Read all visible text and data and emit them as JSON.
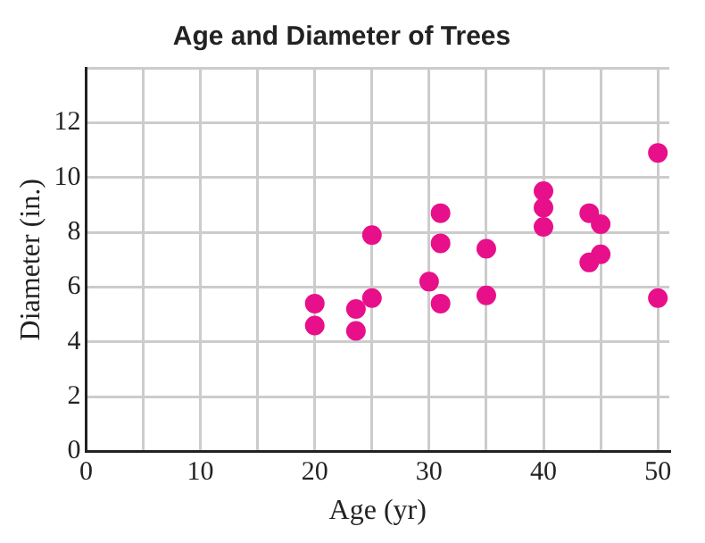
{
  "chart_data": {
    "type": "scatter",
    "title": "Age and Diameter of Trees",
    "xlabel": "Age (yr)",
    "ylabel": "Diameter (in.)",
    "x": [
      20,
      20,
      23.6,
      23.6,
      25,
      25,
      30,
      31,
      31,
      31,
      35,
      35,
      40,
      40,
      40,
      44,
      45,
      44,
      45,
      50,
      50
    ],
    "series": [
      {
        "color": "#e8108a",
        "values": [
          5.4,
          4.6,
          5.2,
          4.4,
          7.9,
          5.6,
          6.2,
          8.7,
          7.6,
          5.4,
          7.4,
          5.7,
          9.5,
          8.9,
          8.2,
          8.7,
          8.3,
          6.9,
          7.2,
          10.9,
          5.6
        ]
      }
    ],
    "xlim": [
      0,
      51
    ],
    "ylim": [
      0,
      14
    ],
    "xticks": [
      0,
      {
        "value": 5,
        "label": null
      },
      10,
      {
        "value": 15,
        "label": null
      },
      20,
      {
        "value": 25,
        "label": null
      },
      30,
      {
        "value": 35,
        "label": null
      },
      40,
      {
        "value": 45,
        "label": null
      },
      50
    ],
    "yticks": [
      0,
      2,
      4,
      6,
      8,
      10,
      12,
      {
        "value": 14,
        "label": null
      }
    ],
    "grid": true,
    "marker": "circle",
    "legend": false
  }
}
